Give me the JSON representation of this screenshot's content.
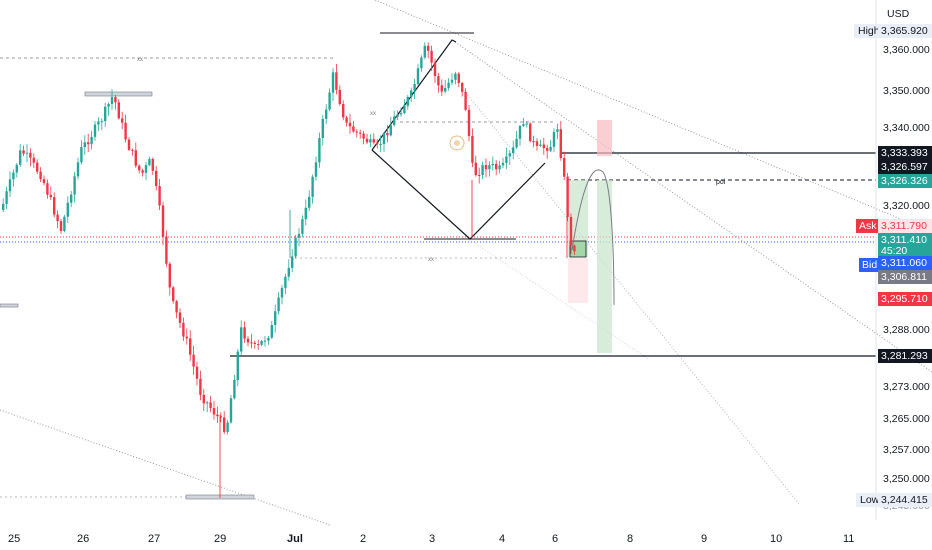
{
  "currency": "USD",
  "price_axis": {
    "ticks": [
      "3,360.000",
      "3,350.000",
      "3,340.000",
      "3,320.000",
      "3,288.000",
      "3,273.000",
      "3,265.000",
      "3,257.000",
      "3,250.000"
    ],
    "partial_bottom": "3,243.000"
  },
  "high": {
    "label": "High",
    "value": "3,365.920"
  },
  "low": {
    "label": "Low",
    "value": "3,244.415"
  },
  "level_tags": {
    "t1": "3,333.393",
    "t2": "3,326.597",
    "t3": "3,326.326",
    "ask_label": "Ask",
    "ask_value": "3,311.790",
    "last_value": "3,311.410",
    "countdown": "45:20",
    "bid_label": "Bid",
    "bid_value": "3,311.060",
    "t_gray": "3,306.811",
    "t_red": "3,295.710",
    "t_bottom": "3,281.293"
  },
  "annotations": {
    "poi": "poi",
    "xx1": "xx",
    "xx2": "xx",
    "xx3": "xx"
  },
  "date_axis": [
    "25",
    "26",
    "27",
    "29",
    "Jul",
    "2",
    "3",
    "4",
    "6",
    "8",
    "9",
    "10",
    "11"
  ],
  "colors": {
    "up": "#26a69a",
    "down": "#f23645",
    "ask": "#f23645",
    "bid": "#2962ff"
  }
}
